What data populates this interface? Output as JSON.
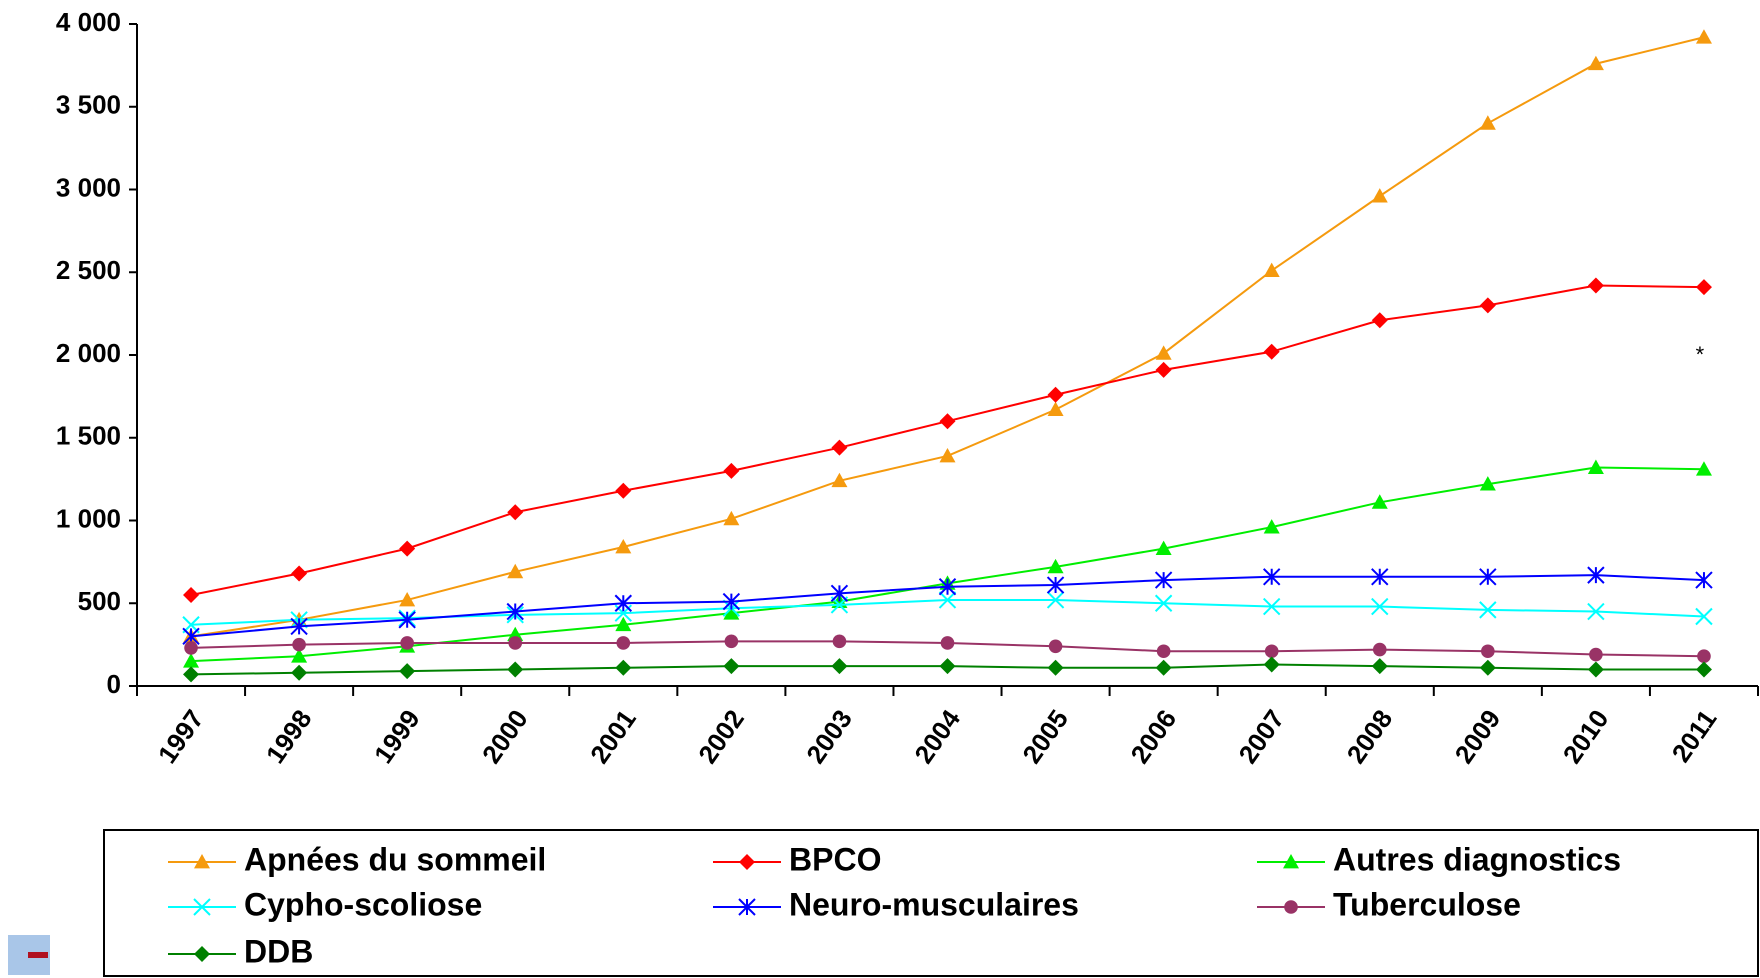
{
  "chart_data": {
    "type": "line",
    "categories": [
      "1997",
      "1998",
      "1999",
      "2000",
      "2001",
      "2002",
      "2003",
      "2004",
      "2005",
      "2006",
      "2007",
      "2008",
      "2009",
      "2010",
      "2011"
    ],
    "ylim": [
      0,
      4000
    ],
    "yticks": [
      0,
      500,
      {
        "value": 1000,
        "label": "1 000"
      },
      {
        "value": 1500,
        "label": "1 500"
      },
      {
        "value": 2000,
        "label": "2 000"
      },
      {
        "value": 2500,
        "label": "2 500"
      },
      {
        "value": 3000,
        "label": "3 000"
      },
      {
        "value": 3500,
        "label": "3 500"
      },
      {
        "value": 4000,
        "label": "4 000"
      }
    ],
    "grid": false,
    "annotations": [
      "*"
    ],
    "series": [
      {
        "name": "Apnées du sommeil",
        "color": "#f59a0e",
        "marker": "triangle",
        "values": [
          300,
          400,
          520,
          690,
          840,
          1010,
          1240,
          1390,
          1670,
          2010,
          2510,
          2960,
          3400,
          3760,
          3920
        ]
      },
      {
        "name": "BPCO",
        "color": "#ff0000",
        "marker": "diamond",
        "values": [
          550,
          680,
          830,
          1050,
          1180,
          1300,
          1440,
          1600,
          1760,
          1910,
          2020,
          2210,
          2300,
          2420,
          2410
        ]
      },
      {
        "name": "Autres diagnostics",
        "color": "#00ee00",
        "marker": "triangle",
        "values": [
          150,
          180,
          240,
          310,
          370,
          440,
          510,
          620,
          720,
          830,
          960,
          1110,
          1220,
          1320,
          1310
        ]
      },
      {
        "name": "Cypho-scoliose",
        "color": "#00ffff",
        "marker": "x",
        "values": [
          370,
          400,
          410,
          430,
          440,
          470,
          490,
          520,
          520,
          500,
          480,
          480,
          460,
          450,
          420
        ]
      },
      {
        "name": "Neuro-musculaires",
        "color": "#0000ff",
        "marker": "star",
        "values": [
          300,
          360,
          400,
          450,
          500,
          510,
          560,
          600,
          610,
          640,
          660,
          660,
          660,
          670,
          640
        ]
      },
      {
        "name": "Tuberculose",
        "color": "#993366",
        "marker": "circle",
        "values": [
          230,
          250,
          260,
          260,
          260,
          270,
          270,
          260,
          240,
          210,
          210,
          220,
          210,
          190,
          180
        ]
      },
      {
        "name": "DDB",
        "color": "#008000",
        "marker": "diamond",
        "values": [
          70,
          80,
          90,
          100,
          110,
          120,
          120,
          120,
          110,
          110,
          130,
          120,
          110,
          100,
          100
        ]
      }
    ]
  }
}
